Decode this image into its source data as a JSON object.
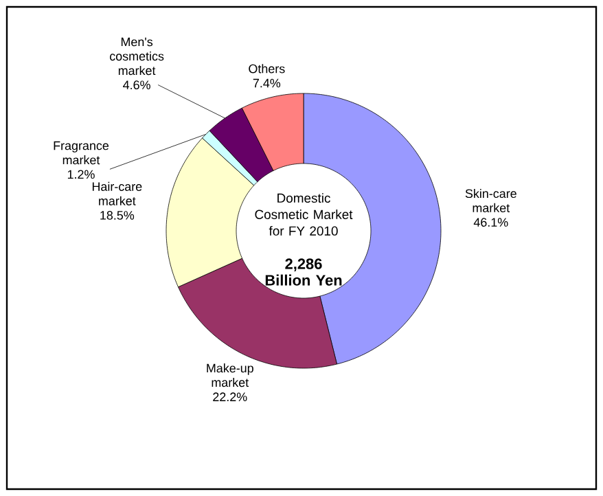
{
  "chart_data": {
    "type": "donut",
    "title": "Domestic Cosmetic Market for FY 2010",
    "annotations": [
      "**2,286 Billion Yen**"
    ],
    "categories": [
      "Skin-care market",
      "Make-up market",
      "Hair-care market",
      "Fragrance market",
      "Men's cosmetics market",
      "Others"
    ],
    "values": [
      46.1,
      22.2,
      18.5,
      1.2,
      4.6,
      7.4
    ],
    "value_labels": [
      "46.1%",
      "22.2%",
      "18.5%",
      "1.2%",
      "4.6%",
      "7.4%"
    ],
    "colors": [
      "#9999ff",
      "#993366",
      "#ffffcc",
      "#ccffff",
      "#660066",
      "#ff8080"
    ]
  }
}
